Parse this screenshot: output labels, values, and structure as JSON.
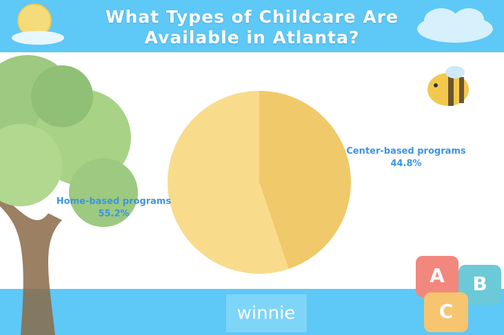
{
  "chart_data": {
    "type": "pie",
    "title": "What Types of Childcare Are Available in Atlanta?",
    "categories": [
      "Center-based programs",
      "Home-based programs"
    ],
    "values": [
      44.8,
      55.2
    ],
    "value_labels": [
      "44.8%",
      "55.2%"
    ],
    "colors": [
      "#f0c96a",
      "#f8dc8c"
    ]
  },
  "brand": "winnie",
  "blocks": [
    "A",
    "B",
    "C"
  ]
}
